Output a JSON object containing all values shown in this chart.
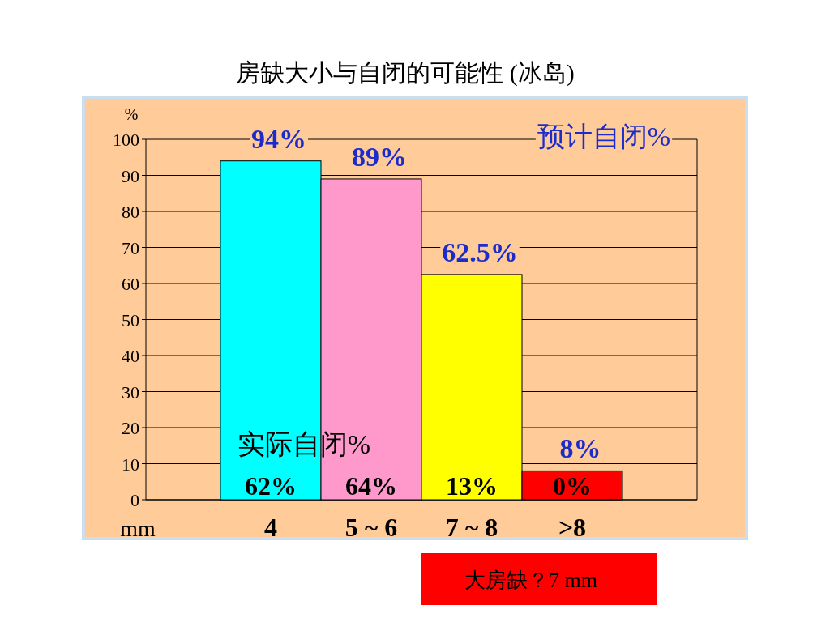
{
  "chart_data": {
    "type": "bar",
    "title": "房缺大小与自闭的可能性 (冰岛)",
    "xlabel": "mm",
    "ylabel": "%",
    "categories": [
      "4",
      "5 ~ 6",
      "7 ~ 8",
      ">8"
    ],
    "values": [
      94,
      89,
      62.5,
      8
    ],
    "colors": [
      "#00ffff",
      "#ff99cc",
      "#ffff00",
      "#ff0000"
    ],
    "value_labels": [
      "94%",
      "89%",
      "62.5%",
      "8%"
    ],
    "ylim": [
      0,
      100
    ],
    "yticks": [
      0,
      10,
      20,
      30,
      40,
      50,
      60,
      70,
      80,
      90,
      100
    ],
    "grid": "y",
    "annotations": [
      "预计自闭%",
      "实际自闭%",
      "62%",
      "64%",
      "13%",
      "0%",
      "大房缺？7 mm"
    ]
  }
}
